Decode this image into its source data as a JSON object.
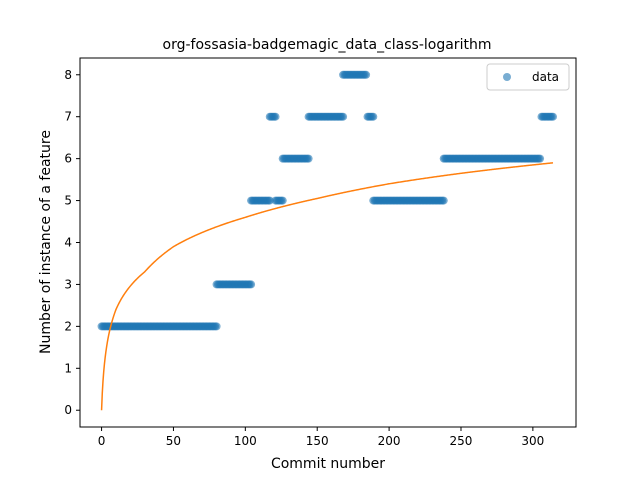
{
  "chart_data": {
    "type": "scatter",
    "title": "org-fossasia-badgemagic_data_class-logarithm",
    "xlabel": "Commit number",
    "ylabel": "Number of instance of a feature",
    "xlim": [
      -15,
      330
    ],
    "ylim": [
      -0.4,
      8.4
    ],
    "xticks": [
      0,
      50,
      100,
      150,
      200,
      250,
      300
    ],
    "yticks": [
      0,
      1,
      2,
      3,
      4,
      5,
      6,
      7,
      8
    ],
    "grid": false,
    "legend": {
      "placement": "top-right",
      "entries": [
        "data"
      ]
    },
    "colors": {
      "data": "#1f77b4",
      "fit": "#ff7f0e"
    },
    "series": [
      {
        "name": "data",
        "kind": "scatter",
        "segments": [
          {
            "x_start": 0,
            "x_end": 80,
            "y": 2
          },
          {
            "x_start": 80,
            "x_end": 104,
            "y": 3
          },
          {
            "x_start": 104,
            "x_end": 117,
            "y": 5
          },
          {
            "x_start": 117,
            "x_end": 121,
            "y": 7
          },
          {
            "x_start": 121,
            "x_end": 126,
            "y": 5
          },
          {
            "x_start": 126,
            "x_end": 144,
            "y": 6
          },
          {
            "x_start": 144,
            "x_end": 168,
            "y": 7
          },
          {
            "x_start": 168,
            "x_end": 184,
            "y": 8
          },
          {
            "x_start": 185,
            "x_end": 189,
            "y": 7
          },
          {
            "x_start": 189,
            "x_end": 238,
            "y": 5
          },
          {
            "x_start": 238,
            "x_end": 305,
            "y": 6
          },
          {
            "x_start": 306,
            "x_end": 314,
            "y": 7
          }
        ]
      },
      {
        "kind": "line",
        "model": "logarithmic",
        "x_range": [
          0,
          314
        ],
        "y_at_x": [
          [
            0,
            0
          ],
          [
            5,
            1.8
          ],
          [
            10,
            2.4
          ],
          [
            30,
            3.3
          ],
          [
            50,
            3.9
          ],
          [
            100,
            4.6
          ],
          [
            150,
            5.05
          ],
          [
            200,
            5.4
          ],
          [
            250,
            5.65
          ],
          [
            314,
            5.9
          ]
        ]
      }
    ]
  }
}
